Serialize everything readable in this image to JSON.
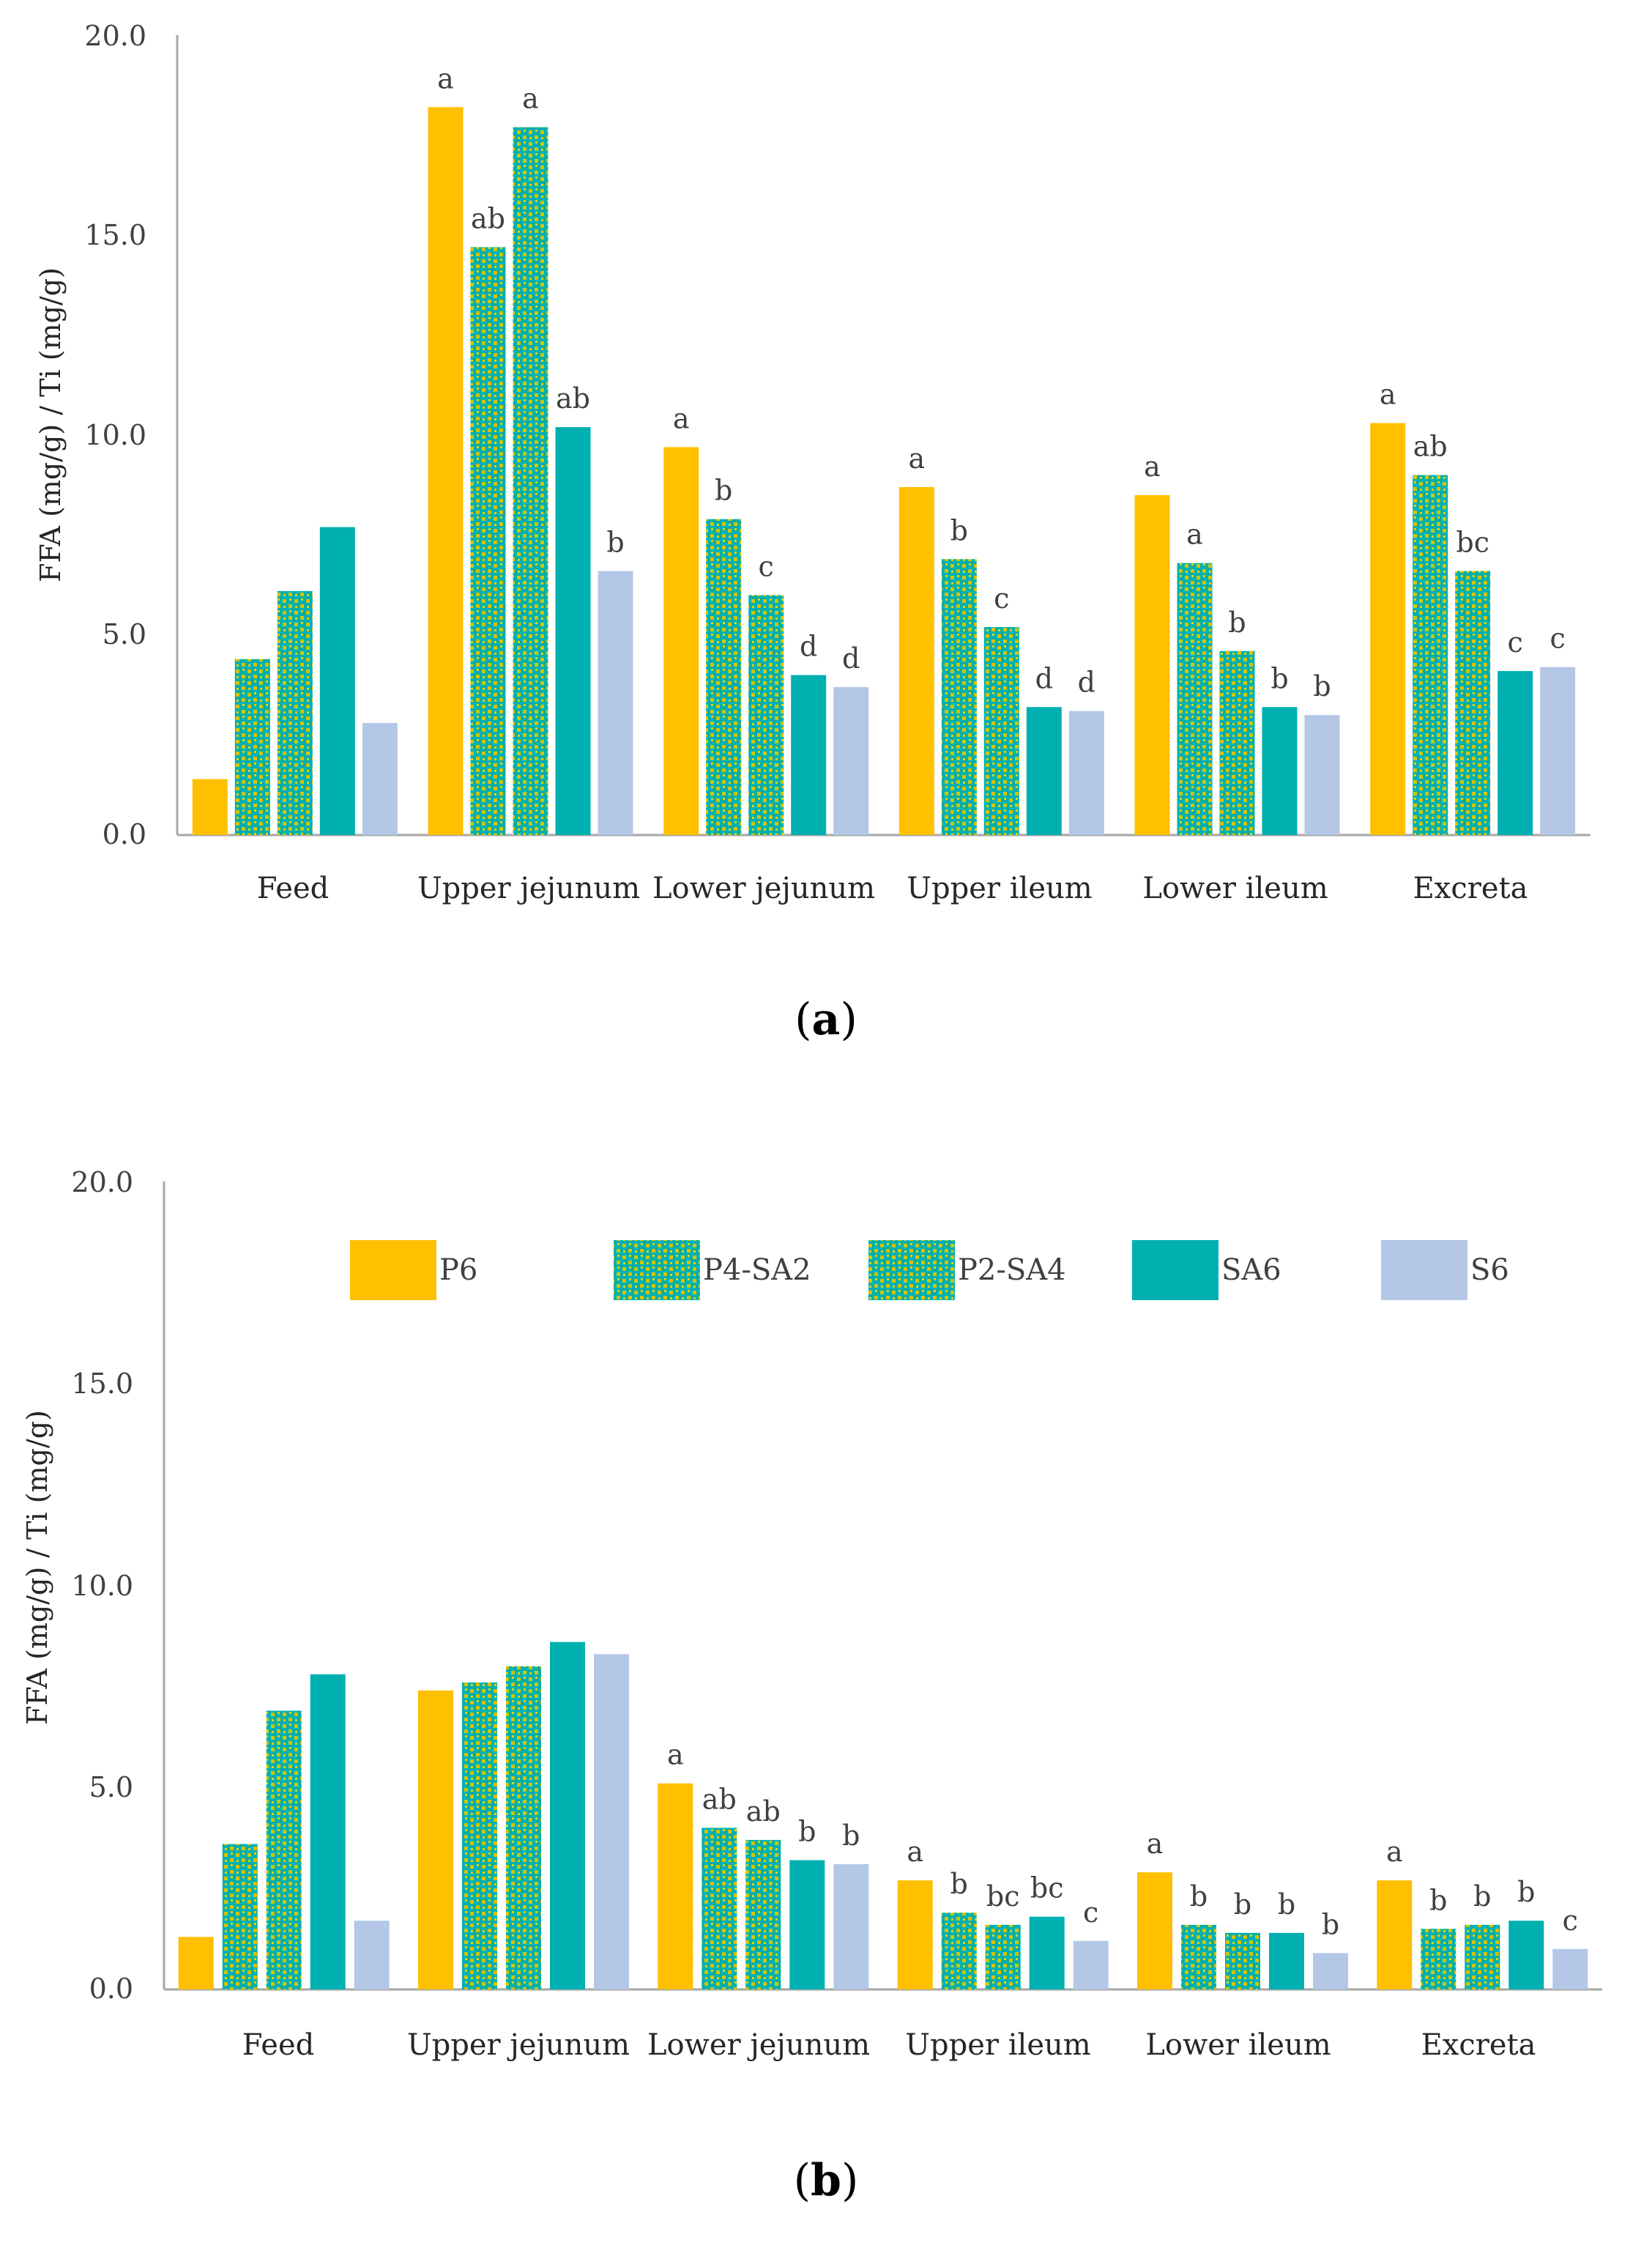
{
  "colors": {
    "P6": "#FFC000",
    "SA6": "#00B0B0",
    "S6": "#B4C7E7",
    "dots": "#D4C400",
    "axis": "#A6A6A6"
  },
  "chart_data": [
    {
      "type": "bar",
      "panel_label": "a",
      "ylabel": "FFA (mg/g) / Ti (mg/g)",
      "ylim": [
        0,
        20
      ],
      "yticks": [
        "0.0",
        "5.0",
        "10.0",
        "15.0",
        "20.0"
      ],
      "categories": [
        "Feed",
        "Upper jejunum",
        "Lower jejunum",
        "Upper ileum",
        "Lower ileum",
        "Excreta"
      ],
      "series": [
        {
          "name": "P6",
          "pattern": "solid-P6",
          "values": [
            1.4,
            18.2,
            9.7,
            8.7,
            8.5,
            10.3
          ]
        },
        {
          "name": "P4-SA2",
          "pattern": "dots",
          "values": [
            4.4,
            14.7,
            7.9,
            6.9,
            6.8,
            9.0
          ]
        },
        {
          "name": "P2-SA4",
          "pattern": "dots",
          "values": [
            6.1,
            17.7,
            6.0,
            5.2,
            4.6,
            6.6
          ]
        },
        {
          "name": "SA6",
          "pattern": "solid-SA6",
          "values": [
            7.7,
            10.2,
            4.0,
            3.2,
            3.2,
            4.1
          ]
        },
        {
          "name": "S6",
          "pattern": "solid-S6",
          "values": [
            2.8,
            6.6,
            3.7,
            3.1,
            3.0,
            4.2
          ]
        }
      ],
      "annotations": [
        [
          "",
          "",
          "",
          "",
          ""
        ],
        [
          "a",
          "ab",
          "a",
          "ab",
          "b"
        ],
        [
          "a",
          "b",
          "c",
          "d",
          "d"
        ],
        [
          "a",
          "b",
          "c",
          "d",
          "d"
        ],
        [
          "a",
          "a",
          "b",
          "b",
          "b"
        ],
        [
          "a",
          "ab",
          "bc",
          "c",
          "c"
        ]
      ]
    },
    {
      "type": "bar",
      "panel_label": "b",
      "ylabel": "FFA (mg/g) / Ti (mg/g)",
      "ylim": [
        0,
        20
      ],
      "yticks": [
        "0.0",
        "5.0",
        "10.0",
        "15.0",
        "20.0"
      ],
      "categories": [
        "Feed",
        "Upper jejunum",
        "Lower jejunum",
        "Upper ileum",
        "Lower ileum",
        "Excreta"
      ],
      "legend": {
        "placement": "top",
        "items": [
          "P6",
          "P4-SA2",
          "P2-SA4",
          "SA6",
          "S6"
        ]
      },
      "series": [
        {
          "name": "P6",
          "pattern": "solid-P6",
          "values": [
            1.3,
            7.4,
            5.1,
            2.7,
            2.9,
            2.7
          ]
        },
        {
          "name": "P4-SA2",
          "pattern": "dots",
          "values": [
            3.6,
            7.6,
            4.0,
            1.9,
            1.6,
            1.5
          ]
        },
        {
          "name": "P2-SA4",
          "pattern": "dots",
          "values": [
            6.9,
            8.0,
            3.7,
            1.6,
            1.4,
            1.6
          ]
        },
        {
          "name": "SA6",
          "pattern": "solid-SA6",
          "values": [
            7.8,
            8.6,
            3.2,
            1.8,
            1.4,
            1.7
          ]
        },
        {
          "name": "S6",
          "pattern": "solid-S6",
          "values": [
            1.7,
            8.3,
            3.1,
            1.2,
            0.9,
            1.0
          ]
        }
      ],
      "annotations": [
        [
          "",
          "",
          "",
          "",
          ""
        ],
        [
          "",
          "",
          "",
          "",
          ""
        ],
        [
          "a",
          "ab",
          "ab",
          "b",
          "b"
        ],
        [
          "a",
          "b",
          "bc",
          "bc",
          "c"
        ],
        [
          "a",
          "b",
          "b",
          "b",
          "b"
        ],
        [
          "a",
          "b",
          "b",
          "b",
          "c"
        ]
      ]
    }
  ]
}
